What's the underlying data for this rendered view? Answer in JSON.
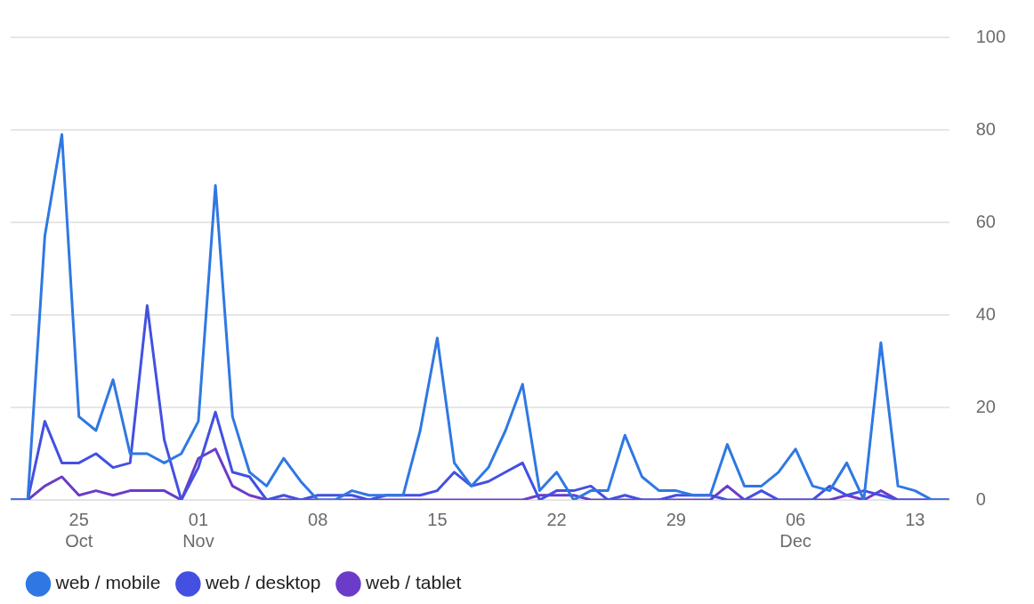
{
  "chart_data": {
    "type": "line",
    "x": [
      "--10-21",
      "--10-22",
      "--10-23",
      "--10-24",
      "--10-25",
      "--10-26",
      "--10-27",
      "--10-28",
      "--10-29",
      "--10-30",
      "--10-31",
      "--11-01",
      "--11-02",
      "--11-03",
      "--11-04",
      "--11-05",
      "--11-06",
      "--11-07",
      "--11-08",
      "--11-09",
      "--11-10",
      "--11-11",
      "--11-12",
      "--11-13",
      "--11-14",
      "--11-15",
      "--11-16",
      "--11-17",
      "--11-18",
      "--11-19",
      "--11-20",
      "--11-21",
      "--11-22",
      "--11-23",
      "--11-24",
      "--11-25",
      "--11-26",
      "--11-27",
      "--11-28",
      "--11-29",
      "--11-30",
      "--12-01",
      "--12-02",
      "--12-03",
      "--12-04",
      "--12-05",
      "--12-06",
      "--12-07",
      "--12-08",
      "--12-09",
      "--12-10",
      "--12-11",
      "--12-12",
      "--12-13",
      "--12-14",
      "--12-15"
    ],
    "series": [
      {
        "name": "web / mobile",
        "color": "#2f78e3",
        "values": [
          0,
          0,
          57,
          79,
          18,
          15,
          26,
          10,
          10,
          8,
          10,
          17,
          68,
          18,
          6,
          3,
          9,
          4,
          0,
          0,
          2,
          1,
          1,
          1,
          15,
          35,
          8,
          3,
          7,
          15,
          25,
          2,
          6,
          0,
          2,
          2,
          14,
          5,
          2,
          2,
          1,
          1,
          12,
          3,
          3,
          6,
          11,
          3,
          2,
          8,
          0,
          34,
          3,
          2,
          0,
          0
        ]
      },
      {
        "name": "web / desktop",
        "color": "#4350e2",
        "values": [
          0,
          0,
          17,
          8,
          8,
          10,
          7,
          8,
          42,
          13,
          0,
          7,
          19,
          6,
          5,
          0,
          1,
          0,
          1,
          1,
          1,
          0,
          1,
          1,
          1,
          2,
          6,
          3,
          4,
          6,
          8,
          0,
          2,
          2,
          3,
          0,
          1,
          0,
          0,
          1,
          1,
          1,
          0,
          0,
          2,
          0,
          0,
          0,
          3,
          1,
          2,
          1,
          0,
          0,
          0,
          0
        ]
      },
      {
        "name": "web / tablet",
        "color": "#6b3cc9",
        "values": [
          0,
          0,
          3,
          5,
          1,
          2,
          1,
          2,
          2,
          2,
          0,
          9,
          11,
          3,
          1,
          0,
          0,
          0,
          0,
          0,
          0,
          0,
          0,
          0,
          0,
          0,
          0,
          0,
          0,
          0,
          0,
          1,
          1,
          1,
          0,
          0,
          0,
          0,
          0,
          0,
          0,
          0,
          3,
          0,
          0,
          0,
          0,
          0,
          0,
          1,
          0,
          2,
          0,
          0,
          0,
          0
        ]
      }
    ],
    "xlim": [
      "--10-21",
      "--12-15"
    ],
    "xticks": [
      {
        "value": "--10-25",
        "label": "25\nOct"
      },
      {
        "value": "--11-01",
        "label": "01\nNov"
      },
      {
        "value": "--11-08",
        "label": "08"
      },
      {
        "value": "--11-15",
        "label": "15"
      },
      {
        "value": "--11-22",
        "label": "22"
      },
      {
        "value": "--11-29",
        "label": "29"
      },
      {
        "value": "--12-06",
        "label": "06\nDec"
      },
      {
        "value": "--12-13",
        "label": "13"
      }
    ],
    "ylim": [
      0,
      100
    ],
    "yticks": [
      0,
      20,
      40,
      60,
      80,
      100
    ],
    "grid": "y",
    "legend": "bottom left",
    "marker": "none",
    "line_style": "solid"
  }
}
